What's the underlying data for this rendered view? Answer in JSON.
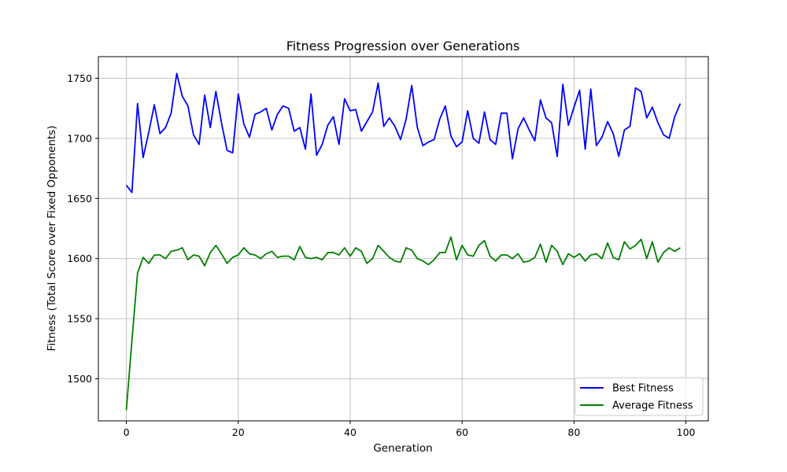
{
  "chart_data": {
    "type": "line",
    "title": "Fitness Progression over Generations",
    "xlabel": "Generation",
    "ylabel": "Fitness (Total Score over Fixed Opponents)",
    "xlim": [
      -5,
      104
    ],
    "ylim": [
      1465,
      1768
    ],
    "xticks": [
      0,
      20,
      40,
      60,
      80,
      100
    ],
    "yticks": [
      1500,
      1550,
      1600,
      1650,
      1700,
      1750
    ],
    "grid": true,
    "legend_position": "bottom-right",
    "x": [
      0,
      1,
      2,
      3,
      4,
      5,
      6,
      7,
      8,
      9,
      10,
      11,
      12,
      13,
      14,
      15,
      16,
      17,
      18,
      19,
      20,
      21,
      22,
      23,
      24,
      25,
      26,
      27,
      28,
      29,
      30,
      31,
      32,
      33,
      34,
      35,
      36,
      37,
      38,
      39,
      40,
      41,
      42,
      43,
      44,
      45,
      46,
      47,
      48,
      49,
      50,
      51,
      52,
      53,
      54,
      55,
      56,
      57,
      58,
      59,
      60,
      61,
      62,
      63,
      64,
      65,
      66,
      67,
      68,
      69,
      70,
      71,
      72,
      73,
      74,
      75,
      76,
      77,
      78,
      79,
      80,
      81,
      82,
      83,
      84,
      85,
      86,
      87,
      88,
      89,
      90,
      91,
      92,
      93,
      94,
      95,
      96,
      97,
      98,
      99
    ],
    "series": [
      {
        "name": "Best Fitness",
        "color": "#0000ff",
        "values": [
          1661,
          1655,
          1729,
          1684,
          1705,
          1728,
          1704,
          1709,
          1721,
          1754,
          1735,
          1727,
          1703,
          1695,
          1736,
          1709,
          1739,
          1713,
          1690,
          1688,
          1737,
          1712,
          1701,
          1720,
          1722,
          1725,
          1707,
          1720,
          1727,
          1725,
          1706,
          1709,
          1691,
          1737,
          1686,
          1695,
          1711,
          1718,
          1695,
          1733,
          1723,
          1724,
          1706,
          1714,
          1722,
          1746,
          1710,
          1717,
          1710,
          1699,
          1716,
          1744,
          1709,
          1694,
          1697,
          1699,
          1716,
          1727,
          1702,
          1693,
          1697,
          1723,
          1700,
          1696,
          1722,
          1699,
          1695,
          1721,
          1721,
          1683,
          1708,
          1717,
          1707,
          1698,
          1732,
          1717,
          1713,
          1685,
          1745,
          1711,
          1726,
          1740,
          1691,
          1741,
          1694,
          1701,
          1714,
          1704,
          1685,
          1707,
          1710,
          1742,
          1739,
          1717,
          1726,
          1713,
          1703,
          1700,
          1718,
          1729
        ]
      },
      {
        "name": "Average Fitness",
        "color": "#008000",
        "values": [
          1474,
          1532,
          1588,
          1601,
          1596,
          1603,
          1603,
          1600,
          1606,
          1607,
          1609,
          1599,
          1603,
          1602,
          1594,
          1605,
          1611,
          1604,
          1596,
          1601,
          1603,
          1609,
          1604,
          1603,
          1600,
          1604,
          1606,
          1601,
          1602,
          1602,
          1599,
          1610,
          1601,
          1600,
          1601,
          1599,
          1605,
          1605,
          1603,
          1609,
          1602,
          1609,
          1606,
          1596,
          1600,
          1611,
          1606,
          1601,
          1598,
          1597,
          1609,
          1607,
          1600,
          1598,
          1595,
          1599,
          1605,
          1605,
          1618,
          1599,
          1611,
          1603,
          1602,
          1611,
          1615,
          1602,
          1598,
          1603,
          1603,
          1600,
          1604,
          1597,
          1598,
          1601,
          1612,
          1597,
          1611,
          1606,
          1595,
          1604,
          1601,
          1604,
          1598,
          1603,
          1604,
          1600,
          1613,
          1601,
          1599,
          1614,
          1608,
          1611,
          1616,
          1600,
          1614,
          1597,
          1605,
          1609,
          1606,
          1609
        ]
      }
    ]
  }
}
